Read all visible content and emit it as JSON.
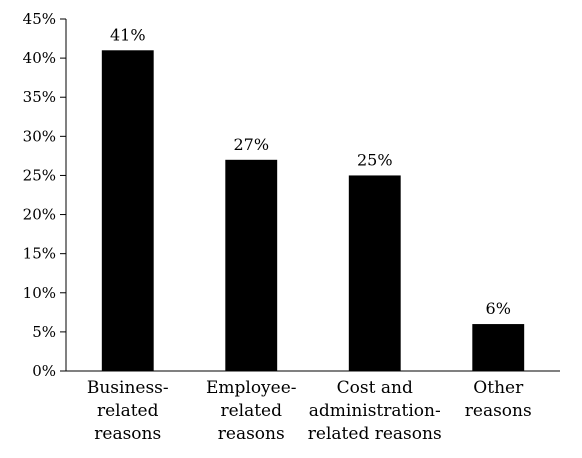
{
  "chart_data": {
    "type": "bar",
    "title": "",
    "xlabel": "",
    "ylabel": "",
    "categories": [
      [
        "Business-",
        "related",
        "reasons"
      ],
      [
        "Employee-",
        "related",
        "reasons"
      ],
      [
        "Cost and",
        "administration-",
        "related reasons"
      ],
      [
        "Other",
        "reasons"
      ]
    ],
    "values": [
      41,
      27,
      25,
      6
    ],
    "data_labels": [
      "41%",
      "27%",
      "25%",
      "6%"
    ],
    "ylim": [
      0,
      45
    ],
    "yticks": [
      0,
      5,
      10,
      15,
      20,
      25,
      30,
      35,
      40,
      45
    ],
    "ytick_labels": [
      "0%",
      "5%",
      "10%",
      "15%",
      "20%",
      "25%",
      "30%",
      "35%",
      "40%",
      "45%"
    ],
    "grid": false,
    "legend": "none",
    "bar_color": "#000000"
  }
}
